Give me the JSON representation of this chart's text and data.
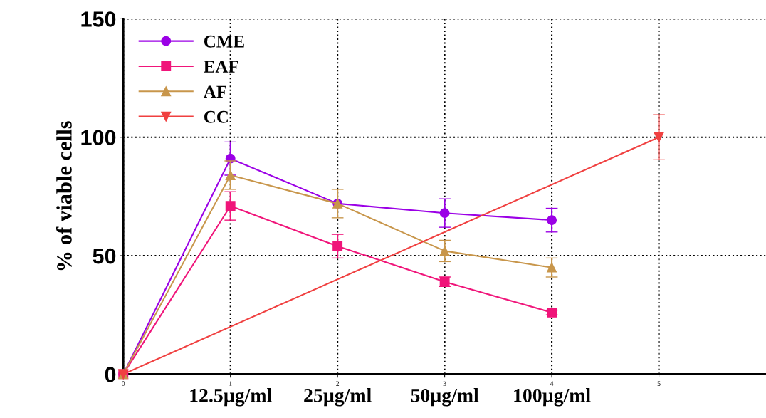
{
  "chart_data": {
    "type": "line",
    "ylabel": "% of viable cells",
    "xlim": [
      0,
      6
    ],
    "xticks": [
      0,
      1,
      2,
      3,
      4,
      5
    ],
    "ylim": [
      0,
      150
    ],
    "yticks": [
      0,
      50,
      100,
      150
    ],
    "grid": true,
    "legend": "top left",
    "line_style": "solid",
    "annotations": [
      "12.5µg/ml",
      "25µg/ml",
      "50µg/ml",
      "100µg/ml"
    ],
    "series": [
      {
        "name": "CME",
        "color": "#9b00e6",
        "marker": "circle",
        "x": [
          0,
          1,
          2,
          3,
          4
        ],
        "values": [
          0,
          91,
          72,
          68,
          65
        ],
        "errors": [
          null,
          7,
          null,
          6,
          5
        ]
      },
      {
        "name": "EAF",
        "color": "#f0157a",
        "marker": "square",
        "x": [
          0,
          1,
          2,
          3,
          4
        ],
        "values": [
          0,
          71,
          54,
          39,
          26
        ],
        "errors": [
          null,
          6,
          5,
          2,
          1
        ]
      },
      {
        "name": "AF",
        "color": "#c8964b",
        "marker": "triangle",
        "x": [
          0,
          1,
          2,
          3,
          4
        ],
        "values": [
          0,
          84,
          72,
          52,
          45
        ],
        "errors": [
          null,
          6,
          6,
          4.5,
          4
        ]
      },
      {
        "name": "CC",
        "color": "#f04040",
        "marker": "triangle_down",
        "x": [
          0,
          5
        ],
        "values": [
          0,
          100
        ],
        "errors": [
          null,
          9.5
        ]
      }
    ]
  }
}
